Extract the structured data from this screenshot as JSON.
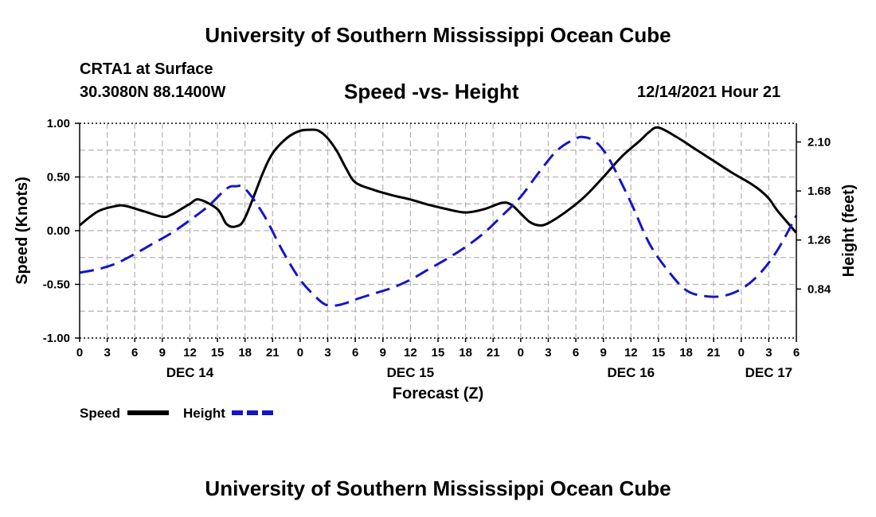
{
  "header": {
    "title": "University of Southern Mississippi Ocean Cube",
    "station": "CRTA1 at Surface",
    "coords": "30.3080N  88.1400W",
    "subtitle": "Speed -vs- Height",
    "datetime": "12/14/2021 Hour 21"
  },
  "footer": {
    "title": "University of Southern Mississippi Ocean Cube"
  },
  "chart_data": {
    "type": "line",
    "xlabel": "Forecast (Z)",
    "ylabel_left": "Speed (Knots)",
    "ylabel_right": "Height (feet)",
    "x_range_hours": [
      0,
      78
    ],
    "x_tick_labels": [
      "0",
      "3",
      "6",
      "9",
      "12",
      "15",
      "18",
      "21",
      "0",
      "3",
      "6",
      "9",
      "12",
      "15",
      "18",
      "21",
      "0",
      "3",
      "6",
      "9",
      "12",
      "15",
      "18",
      "21",
      "0",
      "3",
      "6"
    ],
    "date_labels": [
      {
        "label": "DEC 14",
        "hour": 12
      },
      {
        "label": "DEC 15",
        "hour": 36
      },
      {
        "label": "DEC 16",
        "hour": 60
      },
      {
        "label": "DEC 17",
        "hour": 75
      }
    ],
    "y_left_range": [
      -1.0,
      1.0
    ],
    "y_left_ticks": [
      "1.00",
      "0.50",
      "0.00",
      "-0.50",
      "-1.00"
    ],
    "y_left_tick_values": [
      1.0,
      0.5,
      0.0,
      -0.5,
      -1.0
    ],
    "y_right_range": [
      0.42,
      2.26
    ],
    "y_right_ticks": [
      "2.10",
      "1.68",
      "1.26",
      "0.84"
    ],
    "y_right_tick_values": [
      2.1,
      1.68,
      1.26,
      0.84
    ],
    "grid": true,
    "legend": [
      {
        "name": "Speed",
        "color": "#000000",
        "style": "solid"
      },
      {
        "name": "Height",
        "color": "#1515c8",
        "style": "dashed"
      }
    ],
    "series": [
      {
        "name": "Speed",
        "axis": "left",
        "color": "#000000",
        "style": "solid",
        "x": [
          0,
          2,
          4,
          5,
          7,
          9,
          10,
          12,
          13,
          15,
          16,
          17,
          18,
          20,
          21,
          22,
          23,
          24,
          25,
          26,
          27,
          28,
          29,
          30,
          32,
          34,
          36,
          38,
          40,
          42,
          44,
          46,
          47,
          48,
          49,
          50,
          51,
          53,
          55,
          57,
          59,
          61,
          62,
          63,
          65,
          67,
          69,
          71,
          73,
          74,
          75,
          76,
          78
        ],
        "y": [
          0.05,
          0.18,
          0.23,
          0.23,
          0.18,
          0.13,
          0.15,
          0.25,
          0.29,
          0.2,
          0.06,
          0.04,
          0.12,
          0.55,
          0.72,
          0.82,
          0.89,
          0.93,
          0.94,
          0.93,
          0.86,
          0.74,
          0.58,
          0.45,
          0.38,
          0.33,
          0.29,
          0.24,
          0.2,
          0.17,
          0.2,
          0.26,
          0.24,
          0.16,
          0.08,
          0.05,
          0.07,
          0.18,
          0.32,
          0.5,
          0.69,
          0.84,
          0.92,
          0.96,
          0.87,
          0.76,
          0.65,
          0.54,
          0.44,
          0.38,
          0.3,
          0.18,
          -0.02
        ]
      },
      {
        "name": "Height",
        "axis": "right",
        "color": "#1515c8",
        "style": "dashed",
        "x": [
          0,
          2,
          4,
          6,
          8,
          10,
          12,
          14,
          16,
          17,
          18,
          20,
          22,
          24,
          26,
          27,
          28,
          29,
          30,
          32,
          34,
          36,
          38,
          40,
          42,
          44,
          46,
          48,
          50,
          52,
          54,
          55,
          56,
          57,
          58,
          60,
          62,
          64,
          66,
          68,
          70,
          72,
          74,
          76,
          78
        ],
        "y": [
          0.98,
          1.01,
          1.06,
          1.14,
          1.23,
          1.32,
          1.43,
          1.55,
          1.7,
          1.72,
          1.7,
          1.48,
          1.18,
          0.92,
          0.75,
          0.7,
          0.7,
          0.72,
          0.75,
          0.8,
          0.85,
          0.92,
          1.01,
          1.1,
          1.2,
          1.32,
          1.47,
          1.63,
          1.84,
          2.03,
          2.13,
          2.14,
          2.11,
          2.03,
          1.9,
          1.58,
          1.23,
          1.0,
          0.83,
          0.78,
          0.78,
          0.84,
          0.97,
          1.18,
          1.47
        ]
      }
    ]
  }
}
